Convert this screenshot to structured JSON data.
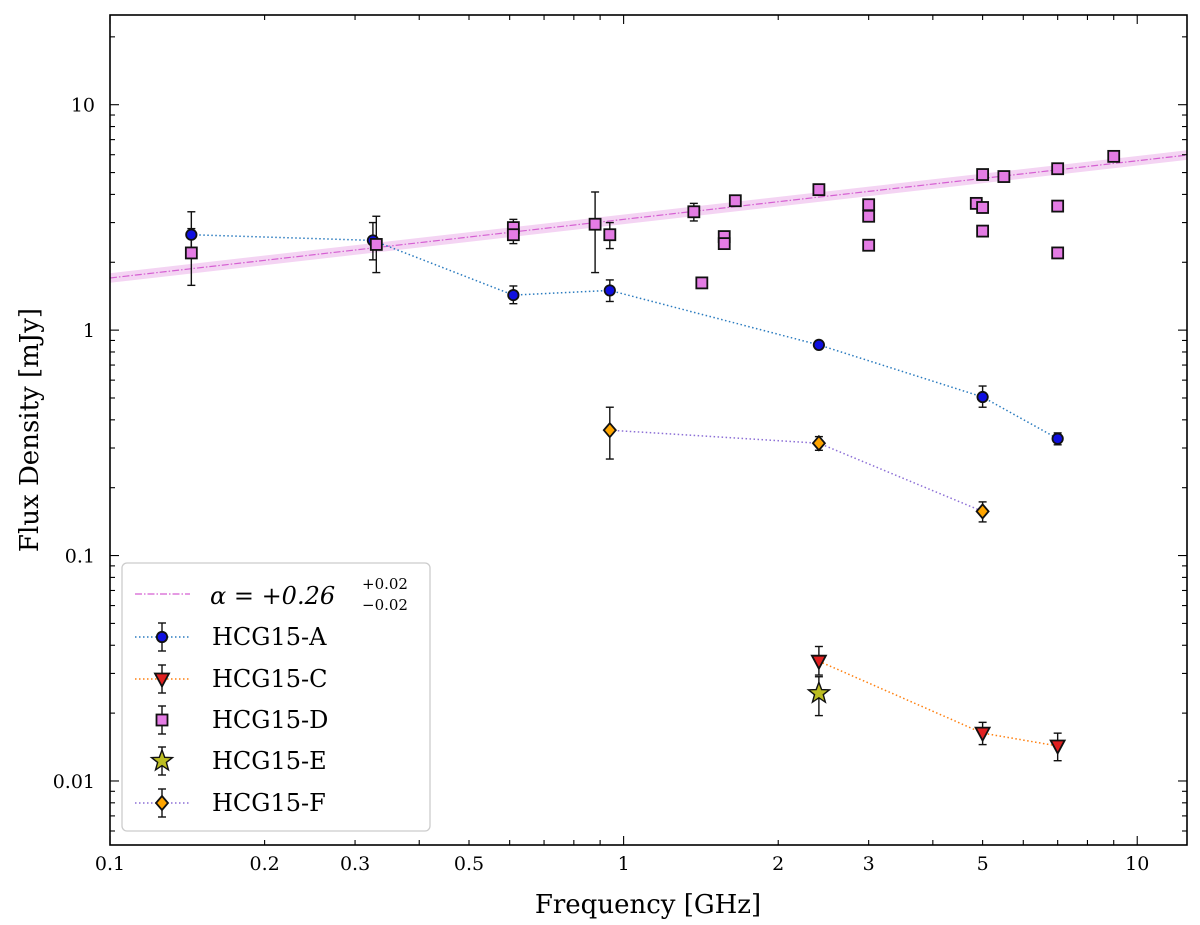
{
  "chart_data": {
    "type": "scatter",
    "title": "",
    "xlabel": "Frequency [GHz]",
    "ylabel": "Flux Density [mJy]",
    "xscale": "log",
    "yscale": "log",
    "xlim": [
      0.1,
      12.5
    ],
    "ylim": [
      0.0052,
      25
    ],
    "xticks": [
      {
        "value": 0.1,
        "label": "0.1"
      },
      {
        "value": 0.2,
        "label": "0.2"
      },
      {
        "value": 0.3,
        "label": "0.3"
      },
      {
        "value": 0.5,
        "label": "0.5"
      },
      {
        "value": 1,
        "label": "1"
      },
      {
        "value": 2,
        "label": "2"
      },
      {
        "value": 3,
        "label": "3"
      },
      {
        "value": 5,
        "label": "5"
      },
      {
        "value": 10,
        "label": "10"
      }
    ],
    "yticks": [
      {
        "value": 0.01,
        "label": "0.01"
      },
      {
        "value": 0.1,
        "label": "0.1"
      },
      {
        "value": 1,
        "label": "1"
      },
      {
        "value": 10,
        "label": "10"
      }
    ],
    "legend_position": "lower-left",
    "fit": {
      "label_main": "α = +0.26",
      "label_sup": "+0.02",
      "label_sub": "−0.02",
      "alpha": 0.26,
      "norm_at_1ghz": 3.1,
      "band_factor": 1.05,
      "color": "#d55fd2",
      "band_color": "#f0c6ef"
    },
    "series": [
      {
        "name": "HCG15-A",
        "marker": "circle",
        "color": "#1010e0",
        "line_color": "#2a7bbf",
        "connected": true,
        "points": [
          {
            "x": 0.144,
            "y": 2.65,
            "lo": 2.1,
            "hi": 3.35
          },
          {
            "x": 0.325,
            "y": 2.5,
            "lo": 2.05,
            "hi": 3.0
          },
          {
            "x": 0.61,
            "y": 1.43,
            "lo": 1.31,
            "hi": 1.57
          },
          {
            "x": 0.94,
            "y": 1.5,
            "lo": 1.34,
            "hi": 1.67
          },
          {
            "x": 2.4,
            "y": 0.86,
            "lo": 0.83,
            "hi": 0.89
          },
          {
            "x": 5.0,
            "y": 0.505,
            "lo": 0.455,
            "hi": 0.565
          },
          {
            "x": 7.0,
            "y": 0.33,
            "lo": 0.31,
            "hi": 0.35
          }
        ]
      },
      {
        "name": "HCG15-C",
        "marker": "triangle-down",
        "color": "#e02020",
        "line_color": "#ff7f0e",
        "connected": true,
        "points": [
          {
            "x": 2.4,
            "y": 0.034,
            "lo": 0.0295,
            "hi": 0.0395
          },
          {
            "x": 5.0,
            "y": 0.0163,
            "lo": 0.0145,
            "hi": 0.0182
          },
          {
            "x": 7.0,
            "y": 0.0143,
            "lo": 0.0123,
            "hi": 0.0163
          }
        ]
      },
      {
        "name": "HCG15-D",
        "marker": "square",
        "color": "#e47ce4",
        "line_color": "",
        "connected": false,
        "points": [
          {
            "x": 0.144,
            "y": 2.2,
            "lo": 1.58,
            "hi": 2.82
          },
          {
            "x": 0.33,
            "y": 2.4,
            "lo": 1.8,
            "hi": 3.2
          },
          {
            "x": 0.61,
            "y": 2.85,
            "lo": 2.6,
            "hi": 3.1
          },
          {
            "x": 0.61,
            "y": 2.65,
            "lo": 2.42,
            "hi": 2.88
          },
          {
            "x": 0.88,
            "y": 2.95,
            "lo": 1.8,
            "hi": 4.1
          },
          {
            "x": 0.94,
            "y": 2.65,
            "lo": 2.3,
            "hi": 3.0
          },
          {
            "x": 1.37,
            "y": 3.35,
            "lo": 3.05,
            "hi": 3.65
          },
          {
            "x": 1.42,
            "y": 1.62,
            "lo": 1.55,
            "hi": 1.69
          },
          {
            "x": 1.57,
            "y": 2.6,
            "lo": 2.5,
            "hi": 2.7
          },
          {
            "x": 1.57,
            "y": 2.42,
            "lo": 2.33,
            "hi": 2.51
          },
          {
            "x": 1.65,
            "y": 3.75,
            "lo": 3.6,
            "hi": 3.9
          },
          {
            "x": 2.4,
            "y": 4.2,
            "lo": 4.05,
            "hi": 4.35
          },
          {
            "x": 3.0,
            "y": 3.6,
            "lo": 3.5,
            "hi": 3.7
          },
          {
            "x": 3.0,
            "y": 3.2,
            "lo": 3.1,
            "hi": 3.3
          },
          {
            "x": 3.0,
            "y": 2.38,
            "lo": 2.3,
            "hi": 2.46
          },
          {
            "x": 4.86,
            "y": 3.65,
            "lo": 3.55,
            "hi": 3.75
          },
          {
            "x": 5.0,
            "y": 4.9,
            "lo": 4.77,
            "hi": 5.03
          },
          {
            "x": 5.0,
            "y": 3.5,
            "lo": 3.4,
            "hi": 3.6
          },
          {
            "x": 5.0,
            "y": 2.75,
            "lo": 2.67,
            "hi": 2.83
          },
          {
            "x": 5.5,
            "y": 4.8,
            "lo": 4.67,
            "hi": 4.93
          },
          {
            "x": 7.0,
            "y": 5.2,
            "lo": 5.07,
            "hi": 5.33
          },
          {
            "x": 7.0,
            "y": 3.55,
            "lo": 3.45,
            "hi": 3.65
          },
          {
            "x": 7.0,
            "y": 2.2,
            "lo": 2.13,
            "hi": 2.27
          },
          {
            "x": 9.0,
            "y": 5.9,
            "lo": 5.75,
            "hi": 6.05
          }
        ]
      },
      {
        "name": "HCG15-E",
        "marker": "star",
        "color": "#bcbd22",
        "line_color": "",
        "connected": false,
        "points": [
          {
            "x": 2.4,
            "y": 0.0245,
            "lo": 0.0195,
            "hi": 0.029
          }
        ]
      },
      {
        "name": "HCG15-F",
        "marker": "diamond",
        "color": "#ffa500",
        "line_color": "#8c6fd6",
        "connected": true,
        "points": [
          {
            "x": 0.94,
            "y": 0.36,
            "lo": 0.268,
            "hi": 0.455
          },
          {
            "x": 2.4,
            "y": 0.315,
            "lo": 0.293,
            "hi": 0.337
          },
          {
            "x": 5.0,
            "y": 0.157,
            "lo": 0.141,
            "hi": 0.173
          }
        ]
      }
    ]
  }
}
